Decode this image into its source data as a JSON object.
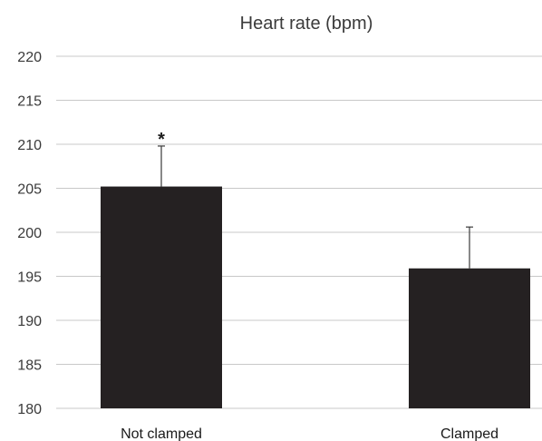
{
  "chart_data": {
    "type": "bar",
    "title": "Heart rate (bpm)",
    "xlabel": "",
    "ylabel": "",
    "categories": [
      "Not clamped",
      "Clamped"
    ],
    "values": [
      205.2,
      195.9
    ],
    "error_upper": [
      209.8,
      200.6
    ],
    "annotations": [
      "*",
      ""
    ],
    "ylim": [
      180,
      220
    ],
    "yticks": [
      180,
      185,
      190,
      195,
      200,
      205,
      210,
      215,
      220
    ],
    "grid": true,
    "bar_color": "#252122",
    "legend": "none"
  }
}
